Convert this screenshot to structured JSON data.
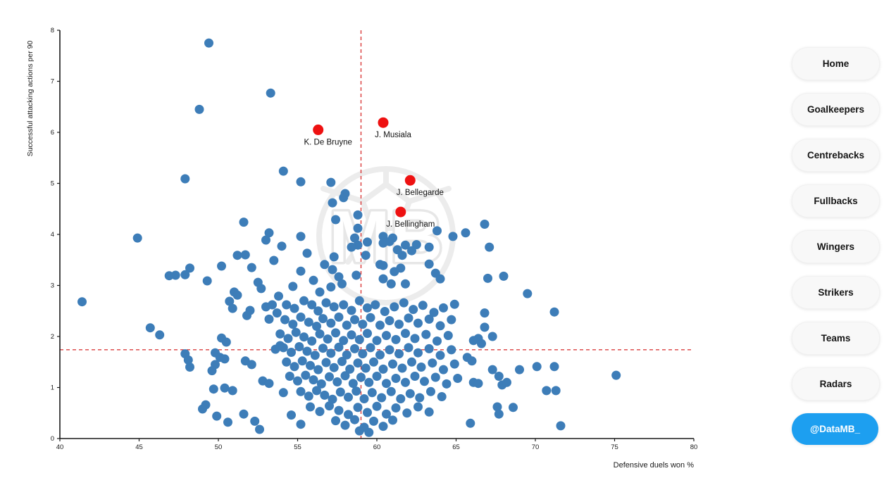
{
  "chart_data": {
    "type": "scatter",
    "xlabel": "Defensive duels won %",
    "ylabel": "Successful attacking actions per 90",
    "xlim": [
      40,
      80
    ],
    "ylim": [
      0,
      8
    ],
    "xticks": [
      "40",
      "45",
      "50",
      "55",
      "60",
      "65",
      "70",
      "75",
      "80"
    ],
    "yticks": [
      "0",
      "1",
      "2",
      "3",
      "4",
      "5",
      "6",
      "7",
      "8"
    ],
    "grid": false,
    "crosshair": {
      "x": 59.0,
      "y": 1.74,
      "color": "#d62828",
      "style": "dashed"
    },
    "point_color": "#3d7db8",
    "highlight_color": "#ee1111",
    "watermark_text": "MB",
    "highlights": [
      {
        "x": 56.3,
        "y": 6.05,
        "label": "K. De Bruyne"
      },
      {
        "x": 60.4,
        "y": 6.19,
        "label": "J. Musiala"
      },
      {
        "x": 62.1,
        "y": 5.06,
        "label": "J. Bellegarde"
      },
      {
        "x": 61.5,
        "y": 4.44,
        "label": "J. Bellingham"
      }
    ],
    "points": [
      [
        49.4,
        7.75
      ],
      [
        53.3,
        6.77
      ],
      [
        48.8,
        6.45
      ],
      [
        47.9,
        5.09
      ],
      [
        54.1,
        5.24
      ],
      [
        55.2,
        5.03
      ],
      [
        57.1,
        5.02
      ],
      [
        51.6,
        4.24
      ],
      [
        53.2,
        4.03
      ],
      [
        44.9,
        3.93
      ],
      [
        58.0,
        4.8
      ],
      [
        57.9,
        4.72
      ],
      [
        57.2,
        4.62
      ],
      [
        58.8,
        4.38
      ],
      [
        57.4,
        4.29
      ],
      [
        58.8,
        4.12
      ],
      [
        63.8,
        4.07
      ],
      [
        65.6,
        4.03
      ],
      [
        66.8,
        4.2
      ],
      [
        67.1,
        3.75
      ],
      [
        64.8,
        3.96
      ],
      [
        60.4,
        3.96
      ],
      [
        61.0,
        3.93
      ],
      [
        62.5,
        3.8
      ],
      [
        63.3,
        3.75
      ],
      [
        62.2,
        3.68
      ],
      [
        59.4,
        3.85
      ],
      [
        58.8,
        3.79
      ],
      [
        58.6,
        3.93
      ],
      [
        58.4,
        3.75
      ],
      [
        59.3,
        3.59
      ],
      [
        60.4,
        3.83
      ],
      [
        60.8,
        3.86
      ],
      [
        60.2,
        3.41
      ],
      [
        61.3,
        3.7
      ],
      [
        61.6,
        3.59
      ],
      [
        61.8,
        3.79
      ],
      [
        61.5,
        3.34
      ],
      [
        61.1,
        3.27
      ],
      [
        60.4,
        3.39
      ],
      [
        60.4,
        3.13
      ],
      [
        60.9,
        3.03
      ],
      [
        61.8,
        3.03
      ],
      [
        63.3,
        3.42
      ],
      [
        63.7,
        3.24
      ],
      [
        64.0,
        3.13
      ],
      [
        67.0,
        3.14
      ],
      [
        68.0,
        3.18
      ],
      [
        55.2,
        3.96
      ],
      [
        55.6,
        3.63
      ],
      [
        57.3,
        3.56
      ],
      [
        56.7,
        3.41
      ],
      [
        55.2,
        3.28
      ],
      [
        54.7,
        2.98
      ],
      [
        56.0,
        3.1
      ],
      [
        56.4,
        2.87
      ],
      [
        57.2,
        3.31
      ],
      [
        57.6,
        3.17
      ],
      [
        57.8,
        3.03
      ],
      [
        57.1,
        2.97
      ],
      [
        58.7,
        3.2
      ],
      [
        41.4,
        2.68
      ],
      [
        45.7,
        2.17
      ],
      [
        46.3,
        2.03
      ],
      [
        47.9,
        1.66
      ],
      [
        48.1,
        1.54
      ],
      [
        48.2,
        1.4
      ],
      [
        49.2,
        0.66
      ],
      [
        51.2,
        3.59
      ],
      [
        51.7,
        3.6
      ],
      [
        50.2,
        3.38
      ],
      [
        52.1,
        3.35
      ],
      [
        53.5,
        3.49
      ],
      [
        53.0,
        3.89
      ],
      [
        54.0,
        3.77
      ],
      [
        48.2,
        3.34
      ],
      [
        47.9,
        3.21
      ],
      [
        47.3,
        3.2
      ],
      [
        46.9,
        3.19
      ],
      [
        49.3,
        3.09
      ],
      [
        52.5,
        3.06
      ],
      [
        52.7,
        2.94
      ],
      [
        51.0,
        2.87
      ],
      [
        51.2,
        2.81
      ],
      [
        50.7,
        2.69
      ],
      [
        50.9,
        2.55
      ],
      [
        53.8,
        2.79
      ],
      [
        53.4,
        2.62
      ],
      [
        53.0,
        2.58
      ],
      [
        53.7,
        2.46
      ],
      [
        52.0,
        2.51
      ],
      [
        51.8,
        2.41
      ],
      [
        53.2,
        2.34
      ],
      [
        50.2,
        1.97
      ],
      [
        50.5,
        1.89
      ],
      [
        53.9,
        1.82
      ],
      [
        53.6,
        1.75
      ],
      [
        49.8,
        1.68
      ],
      [
        50.1,
        1.59
      ],
      [
        50.4,
        1.56
      ],
      [
        49.8,
        1.45
      ],
      [
        49.6,
        1.33
      ],
      [
        51.7,
        1.52
      ],
      [
        52.1,
        1.45
      ],
      [
        52.8,
        1.13
      ],
      [
        53.2,
        1.08
      ],
      [
        50.4,
        0.99
      ],
      [
        50.9,
        0.94
      ],
      [
        49.7,
        0.97
      ],
      [
        54.1,
        0.9
      ],
      [
        49.0,
        0.58
      ],
      [
        49.9,
        0.44
      ],
      [
        50.6,
        0.32
      ],
      [
        51.6,
        0.48
      ],
      [
        52.3,
        0.34
      ],
      [
        52.6,
        0.18
      ],
      [
        54.6,
        0.46
      ],
      [
        55.2,
        0.28
      ],
      [
        69.5,
        2.84
      ],
      [
        71.2,
        2.48
      ],
      [
        66.8,
        2.46
      ],
      [
        66.8,
        2.18
      ],
      [
        67.3,
        2.0
      ],
      [
        66.4,
        1.96
      ],
      [
        66.1,
        1.92
      ],
      [
        66.6,
        1.86
      ],
      [
        65.7,
        1.59
      ],
      [
        66.0,
        1.52
      ],
      [
        66.1,
        1.1
      ],
      [
        66.4,
        1.08
      ],
      [
        69.0,
        1.35
      ],
      [
        70.1,
        1.41
      ],
      [
        71.2,
        1.41
      ],
      [
        75.1,
        1.24
      ],
      [
        67.3,
        1.35
      ],
      [
        67.7,
        1.22
      ],
      [
        67.9,
        1.05
      ],
      [
        68.2,
        1.1
      ],
      [
        70.7,
        0.94
      ],
      [
        71.3,
        0.94
      ],
      [
        67.6,
        0.62
      ],
      [
        67.7,
        0.48
      ],
      [
        68.6,
        0.61
      ],
      [
        65.9,
        0.3
      ],
      [
        71.6,
        0.25
      ],
      [
        54.3,
        2.62
      ],
      [
        54.8,
        2.55
      ],
      [
        55.4,
        2.7
      ],
      [
        55.9,
        2.62
      ],
      [
        56.3,
        2.5
      ],
      [
        56.8,
        2.66
      ],
      [
        57.3,
        2.58
      ],
      [
        57.9,
        2.62
      ],
      [
        58.4,
        2.51
      ],
      [
        58.9,
        2.7
      ],
      [
        59.4,
        2.56
      ],
      [
        59.9,
        2.62
      ],
      [
        60.5,
        2.49
      ],
      [
        61.1,
        2.58
      ],
      [
        61.7,
        2.66
      ],
      [
        62.3,
        2.53
      ],
      [
        62.9,
        2.61
      ],
      [
        63.6,
        2.47
      ],
      [
        64.2,
        2.56
      ],
      [
        64.9,
        2.63
      ],
      [
        54.2,
        2.33
      ],
      [
        54.7,
        2.24
      ],
      [
        55.2,
        2.38
      ],
      [
        55.7,
        2.28
      ],
      [
        56.2,
        2.2
      ],
      [
        56.6,
        2.35
      ],
      [
        57.1,
        2.26
      ],
      [
        57.6,
        2.38
      ],
      [
        58.1,
        2.22
      ],
      [
        58.6,
        2.33
      ],
      [
        59.1,
        2.24
      ],
      [
        59.6,
        2.37
      ],
      [
        60.2,
        2.22
      ],
      [
        60.8,
        2.31
      ],
      [
        61.4,
        2.24
      ],
      [
        62.0,
        2.36
      ],
      [
        62.6,
        2.26
      ],
      [
        63.3,
        2.34
      ],
      [
        64.0,
        2.21
      ],
      [
        64.7,
        2.33
      ],
      [
        53.9,
        2.05
      ],
      [
        54.4,
        1.96
      ],
      [
        54.9,
        2.08
      ],
      [
        55.4,
        1.99
      ],
      [
        55.9,
        1.91
      ],
      [
        56.4,
        2.05
      ],
      [
        56.9,
        1.95
      ],
      [
        57.4,
        2.07
      ],
      [
        57.9,
        1.92
      ],
      [
        58.4,
        2.03
      ],
      [
        58.9,
        1.94
      ],
      [
        59.4,
        2.06
      ],
      [
        60.0,
        1.92
      ],
      [
        60.6,
        2.02
      ],
      [
        61.2,
        1.94
      ],
      [
        61.8,
        2.06
      ],
      [
        62.4,
        1.96
      ],
      [
        63.1,
        2.04
      ],
      [
        63.8,
        1.91
      ],
      [
        64.5,
        2.02
      ],
      [
        54.1,
        1.78
      ],
      [
        54.6,
        1.69
      ],
      [
        55.1,
        1.8
      ],
      [
        55.6,
        1.71
      ],
      [
        56.1,
        1.63
      ],
      [
        56.6,
        1.77
      ],
      [
        57.1,
        1.67
      ],
      [
        57.6,
        1.79
      ],
      [
        58.1,
        1.64
      ],
      [
        58.6,
        1.76
      ],
      [
        59.1,
        1.66
      ],
      [
        59.6,
        1.78
      ],
      [
        60.2,
        1.64
      ],
      [
        60.8,
        1.74
      ],
      [
        61.4,
        1.66
      ],
      [
        62.0,
        1.78
      ],
      [
        62.6,
        1.68
      ],
      [
        63.3,
        1.76
      ],
      [
        64.0,
        1.63
      ],
      [
        64.7,
        1.74
      ],
      [
        54.3,
        1.5
      ],
      [
        54.8,
        1.41
      ],
      [
        55.3,
        1.52
      ],
      [
        55.8,
        1.43
      ],
      [
        56.3,
        1.35
      ],
      [
        56.8,
        1.49
      ],
      [
        57.3,
        1.39
      ],
      [
        57.8,
        1.51
      ],
      [
        58.3,
        1.36
      ],
      [
        58.8,
        1.48
      ],
      [
        59.3,
        1.38
      ],
      [
        59.8,
        1.5
      ],
      [
        60.4,
        1.36
      ],
      [
        61.0,
        1.46
      ],
      [
        61.6,
        1.38
      ],
      [
        62.2,
        1.5
      ],
      [
        62.8,
        1.4
      ],
      [
        63.5,
        1.48
      ],
      [
        64.2,
        1.35
      ],
      [
        64.9,
        1.46
      ],
      [
        54.5,
        1.22
      ],
      [
        55.0,
        1.13
      ],
      [
        55.5,
        1.24
      ],
      [
        56.0,
        1.15
      ],
      [
        56.5,
        1.07
      ],
      [
        57.0,
        1.21
      ],
      [
        57.5,
        1.11
      ],
      [
        58.0,
        1.23
      ],
      [
        58.5,
        1.08
      ],
      [
        59.0,
        1.2
      ],
      [
        59.5,
        1.1
      ],
      [
        60.0,
        1.22
      ],
      [
        60.6,
        1.08
      ],
      [
        61.2,
        1.18
      ],
      [
        61.8,
        1.1
      ],
      [
        62.4,
        1.22
      ],
      [
        63.0,
        1.12
      ],
      [
        63.7,
        1.2
      ],
      [
        64.4,
        1.07
      ],
      [
        65.1,
        1.18
      ],
      [
        55.2,
        0.92
      ],
      [
        55.7,
        0.83
      ],
      [
        56.2,
        0.94
      ],
      [
        56.7,
        0.85
      ],
      [
        57.2,
        0.77
      ],
      [
        57.7,
        0.91
      ],
      [
        58.2,
        0.81
      ],
      [
        58.7,
        0.93
      ],
      [
        59.2,
        0.78
      ],
      [
        59.7,
        0.9
      ],
      [
        60.3,
        0.8
      ],
      [
        60.9,
        0.92
      ],
      [
        61.5,
        0.78
      ],
      [
        62.1,
        0.88
      ],
      [
        62.7,
        0.8
      ],
      [
        63.4,
        0.92
      ],
      [
        64.1,
        0.82
      ],
      [
        55.8,
        0.62
      ],
      [
        56.4,
        0.53
      ],
      [
        57.0,
        0.64
      ],
      [
        57.6,
        0.55
      ],
      [
        58.2,
        0.47
      ],
      [
        58.8,
        0.61
      ],
      [
        59.4,
        0.51
      ],
      [
        60.0,
        0.63
      ],
      [
        60.6,
        0.48
      ],
      [
        61.2,
        0.6
      ],
      [
        61.9,
        0.5
      ],
      [
        62.6,
        0.62
      ],
      [
        63.3,
        0.52
      ],
      [
        57.4,
        0.35
      ],
      [
        58.0,
        0.26
      ],
      [
        58.6,
        0.37
      ],
      [
        59.2,
        0.22
      ],
      [
        59.8,
        0.34
      ],
      [
        60.4,
        0.24
      ],
      [
        61.0,
        0.36
      ],
      [
        58.9,
        0.15
      ],
      [
        59.5,
        0.12
      ]
    ]
  },
  "sidebar": {
    "active_color": "#1d9ff0",
    "buttons": [
      {
        "label": "Home",
        "active": false
      },
      {
        "label": "Goalkeepers",
        "active": false
      },
      {
        "label": "Centrebacks",
        "active": false
      },
      {
        "label": "Fullbacks",
        "active": false
      },
      {
        "label": "Wingers",
        "active": false
      },
      {
        "label": "Strikers",
        "active": false
      },
      {
        "label": "Teams",
        "active": false
      },
      {
        "label": "Radars",
        "active": false
      },
      {
        "label": "@DataMB_",
        "active": true
      }
    ]
  }
}
